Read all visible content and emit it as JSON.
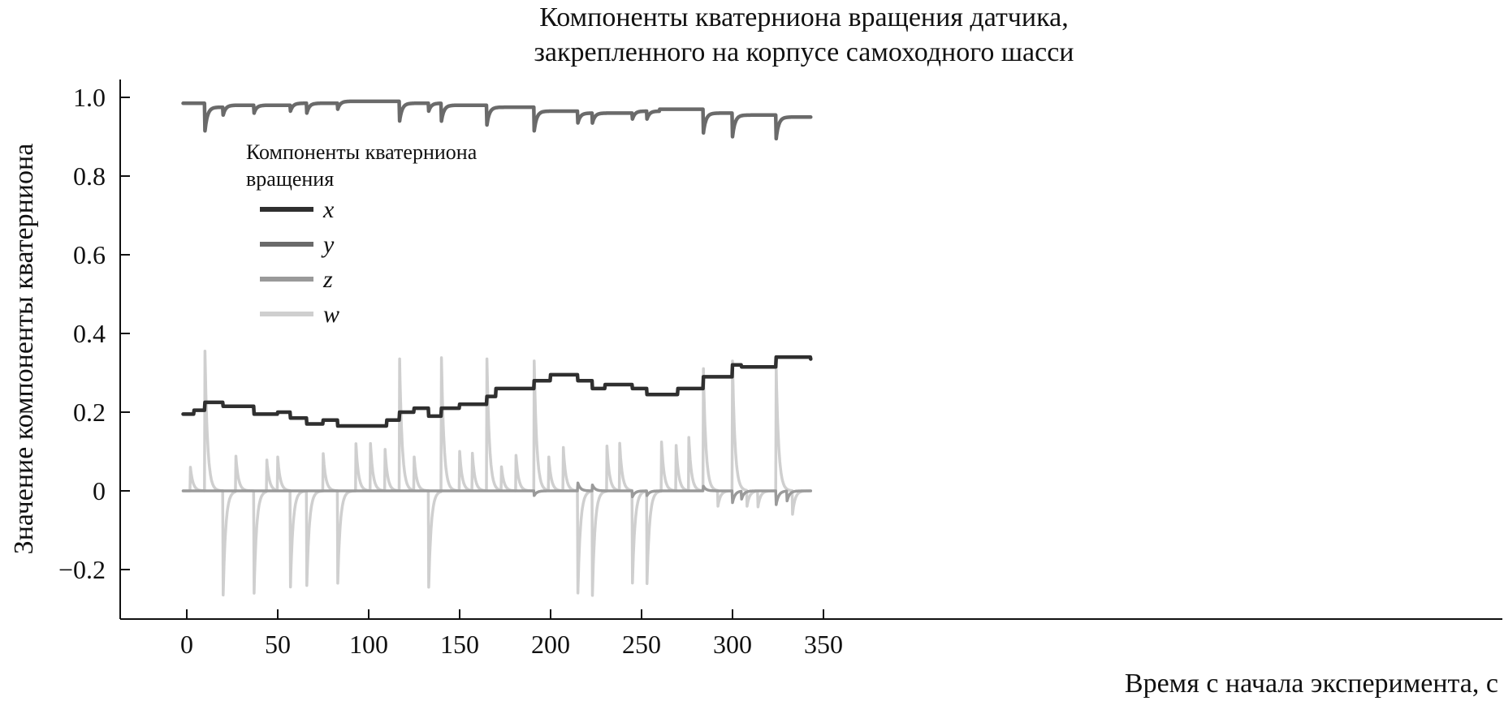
{
  "chart_data": {
    "type": "line",
    "title": "Компоненты кватерниона вращения датчика,",
    "subtitle": "закрепленного на корпусе самоходного шасси",
    "xlabel": "Время с начала эксперимента, с",
    "ylabel": "Значение компоненты кватерниона",
    "xlim": [
      -17,
      350
    ],
    "ylim": [
      -0.33,
      1.05
    ],
    "xticks": [
      0,
      50,
      100,
      150,
      200,
      250,
      300,
      350
    ],
    "xtick_labels": [
      "0",
      "50",
      "100",
      "150",
      "200",
      "250",
      "300",
      "350"
    ],
    "yticks": [
      -0.2,
      0,
      0.2,
      0.4,
      0.6,
      0.8,
      1.0
    ],
    "ytick_labels": [
      "−0.2",
      "0",
      "0.2",
      "0.4",
      "0.6",
      "0.8",
      "1.0"
    ],
    "grid": false,
    "legend": {
      "title_line1": "Компоненты кватерниона",
      "title_line2": "вращения",
      "placement": "upper-left"
    },
    "colors": {
      "x": "#2f2f2f",
      "y": "#6a6a6a",
      "z": "#9a9a9a",
      "w": "#cfcfcf"
    },
    "x_range": [
      -2,
      343
    ],
    "series": [
      {
        "name": "x",
        "kind": "steps",
        "start": 0.195,
        "steps": [
          [
            0,
            0.195
          ],
          [
            4,
            0.205
          ],
          [
            10,
            0.225
          ],
          [
            20,
            0.215
          ],
          [
            37,
            0.195
          ],
          [
            50,
            0.2
          ],
          [
            57,
            0.185
          ],
          [
            66,
            0.17
          ],
          [
            75,
            0.18
          ],
          [
            83,
            0.165
          ],
          [
            110,
            0.18
          ],
          [
            117,
            0.2
          ],
          [
            125,
            0.21
          ],
          [
            133,
            0.19
          ],
          [
            140,
            0.21
          ],
          [
            150,
            0.22
          ],
          [
            165,
            0.24
          ],
          [
            170,
            0.26
          ],
          [
            191,
            0.28
          ],
          [
            200,
            0.295
          ],
          [
            215,
            0.28
          ],
          [
            223,
            0.26
          ],
          [
            230,
            0.27
          ],
          [
            245,
            0.26
          ],
          [
            253,
            0.245
          ],
          [
            270,
            0.26
          ],
          [
            284,
            0.29
          ],
          [
            300,
            0.32
          ],
          [
            305,
            0.315
          ],
          [
            324,
            0.34
          ],
          [
            343,
            0.335
          ]
        ],
        "spikes": []
      },
      {
        "name": "y",
        "kind": "steps",
        "start": 0.985,
        "steps": [
          [
            0,
            0.985
          ],
          [
            10,
            0.975
          ],
          [
            20,
            0.98
          ],
          [
            37,
            0.98
          ],
          [
            57,
            0.985
          ],
          [
            66,
            0.985
          ],
          [
            83,
            0.99
          ],
          [
            117,
            0.985
          ],
          [
            140,
            0.98
          ],
          [
            165,
            0.975
          ],
          [
            191,
            0.965
          ],
          [
            215,
            0.96
          ],
          [
            245,
            0.965
          ],
          [
            260,
            0.97
          ],
          [
            284,
            0.96
          ],
          [
            300,
            0.955
          ],
          [
            324,
            0.95
          ],
          [
            343,
            0.95
          ]
        ],
        "spikes": [
          [
            10,
            -0.06
          ],
          [
            20,
            -0.025
          ],
          [
            37,
            -0.02
          ],
          [
            57,
            -0.02
          ],
          [
            66,
            -0.025
          ],
          [
            83,
            -0.02
          ],
          [
            117,
            -0.045
          ],
          [
            133,
            -0.02
          ],
          [
            140,
            -0.04
          ],
          [
            165,
            -0.045
          ],
          [
            191,
            -0.05
          ],
          [
            215,
            -0.025
          ],
          [
            223,
            -0.025
          ],
          [
            245,
            -0.02
          ],
          [
            253,
            -0.02
          ],
          [
            284,
            -0.05
          ],
          [
            300,
            -0.055
          ],
          [
            324,
            -0.055
          ]
        ]
      },
      {
        "name": "z",
        "kind": "steps",
        "start": 0.0,
        "steps": [
          [
            0,
            0.0
          ],
          [
            343,
            0.0
          ]
        ],
        "spikes": [
          [
            191,
            -0.012
          ],
          [
            215,
            0.02
          ],
          [
            223,
            0.015
          ],
          [
            245,
            -0.015
          ],
          [
            253,
            -0.012
          ],
          [
            284,
            0.012
          ],
          [
            300,
            -0.03
          ],
          [
            305,
            -0.02
          ],
          [
            324,
            -0.035
          ],
          [
            330,
            -0.025
          ]
        ]
      },
      {
        "name": "w",
        "kind": "steps",
        "start": 0.0,
        "steps": [
          [
            0,
            0.0
          ],
          [
            343,
            0.0
          ]
        ],
        "spikes": [
          [
            2,
            0.06
          ],
          [
            10,
            0.355
          ],
          [
            20,
            -0.265
          ],
          [
            27,
            0.09
          ],
          [
            37,
            -0.26
          ],
          [
            44,
            0.08
          ],
          [
            50,
            0.085
          ],
          [
            57,
            -0.245
          ],
          [
            66,
            -0.24
          ],
          [
            75,
            0.095
          ],
          [
            83,
            -0.235
          ],
          [
            93,
            0.12
          ],
          [
            101,
            0.12
          ],
          [
            109,
            0.105
          ],
          [
            117,
            0.335
          ],
          [
            125,
            0.085
          ],
          [
            133,
            -0.245
          ],
          [
            140,
            0.34
          ],
          [
            150,
            0.1
          ],
          [
            157,
            0.095
          ],
          [
            165,
            0.335
          ],
          [
            173,
            0.06
          ],
          [
            181,
            0.09
          ],
          [
            191,
            0.33
          ],
          [
            199,
            0.085
          ],
          [
            207,
            0.11
          ],
          [
            215,
            -0.26
          ],
          [
            223,
            -0.265
          ],
          [
            231,
            0.115
          ],
          [
            238,
            0.12
          ],
          [
            245,
            -0.235
          ],
          [
            253,
            -0.235
          ],
          [
            261,
            0.125
          ],
          [
            269,
            0.115
          ],
          [
            276,
            0.135
          ],
          [
            284,
            0.31
          ],
          [
            292,
            -0.04
          ],
          [
            300,
            0.33
          ],
          [
            308,
            -0.04
          ],
          [
            314,
            -0.04
          ],
          [
            324,
            0.315
          ],
          [
            333,
            -0.06
          ]
        ]
      }
    ]
  }
}
